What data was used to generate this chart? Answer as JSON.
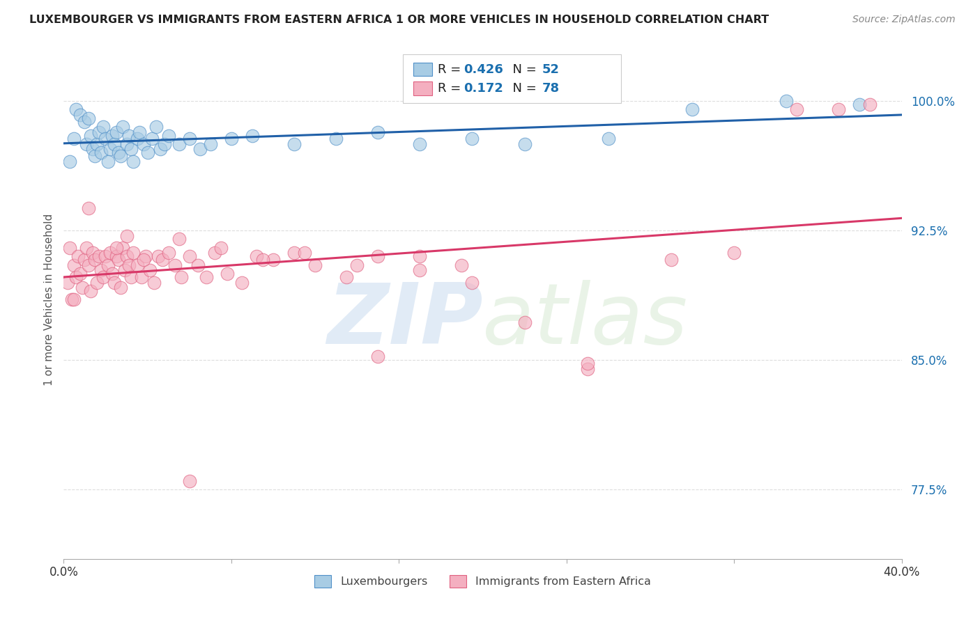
{
  "title": "LUXEMBOURGER VS IMMIGRANTS FROM EASTERN AFRICA 1 OR MORE VEHICLES IN HOUSEHOLD CORRELATION CHART",
  "source": "Source: ZipAtlas.com",
  "ylabel": "1 or more Vehicles in Household",
  "y_ticks": [
    77.5,
    85.0,
    92.5,
    100.0
  ],
  "y_tick_labels": [
    "77.5%",
    "85.0%",
    "92.5%",
    "100.0%"
  ],
  "xlim": [
    0.0,
    0.4
  ],
  "ylim": [
    73.5,
    103.5
  ],
  "blue_label": "Luxembourgers",
  "pink_label": "Immigrants from Eastern Africa",
  "blue_R": 0.426,
  "blue_N": 52,
  "pink_R": 0.172,
  "pink_N": 78,
  "blue_color": "#a8cce4",
  "pink_color": "#f4afc0",
  "blue_edge": "#5090c8",
  "pink_edge": "#e06080",
  "blue_line": "#2060a8",
  "pink_line": "#d83868",
  "legend_num_color": "#1a6faf",
  "grid_color": "#dddddd",
  "background": "#ffffff",
  "blue_x": [
    0.003,
    0.005,
    0.006,
    0.008,
    0.01,
    0.011,
    0.012,
    0.013,
    0.014,
    0.015,
    0.016,
    0.017,
    0.018,
    0.019,
    0.02,
    0.021,
    0.022,
    0.023,
    0.024,
    0.025,
    0.026,
    0.027,
    0.028,
    0.03,
    0.031,
    0.032,
    0.033,
    0.035,
    0.036,
    0.038,
    0.04,
    0.042,
    0.044,
    0.046,
    0.048,
    0.05,
    0.055,
    0.06,
    0.065,
    0.07,
    0.08,
    0.09,
    0.11,
    0.13,
    0.15,
    0.17,
    0.195,
    0.22,
    0.26,
    0.3,
    0.345,
    0.38
  ],
  "blue_y": [
    96.5,
    97.8,
    99.5,
    99.2,
    98.8,
    97.5,
    99.0,
    98.0,
    97.2,
    96.8,
    97.5,
    98.2,
    97.0,
    98.5,
    97.8,
    96.5,
    97.2,
    98.0,
    97.5,
    98.2,
    97.0,
    96.8,
    98.5,
    97.5,
    98.0,
    97.2,
    96.5,
    97.8,
    98.2,
    97.5,
    97.0,
    97.8,
    98.5,
    97.2,
    97.5,
    98.0,
    97.5,
    97.8,
    97.2,
    97.5,
    97.8,
    98.0,
    97.5,
    97.8,
    98.2,
    97.5,
    97.8,
    97.5,
    97.8,
    99.5,
    100.0,
    99.8
  ],
  "pink_x": [
    0.002,
    0.003,
    0.004,
    0.005,
    0.006,
    0.007,
    0.008,
    0.009,
    0.01,
    0.011,
    0.012,
    0.013,
    0.014,
    0.015,
    0.016,
    0.017,
    0.018,
    0.019,
    0.02,
    0.021,
    0.022,
    0.023,
    0.024,
    0.025,
    0.026,
    0.027,
    0.028,
    0.029,
    0.03,
    0.031,
    0.032,
    0.033,
    0.035,
    0.037,
    0.039,
    0.041,
    0.043,
    0.045,
    0.047,
    0.05,
    0.053,
    0.056,
    0.06,
    0.064,
    0.068,
    0.072,
    0.078,
    0.085,
    0.092,
    0.1,
    0.11,
    0.12,
    0.135,
    0.15,
    0.17,
    0.195,
    0.22,
    0.25,
    0.15,
    0.17,
    0.19,
    0.012,
    0.025,
    0.038,
    0.055,
    0.075,
    0.095,
    0.115,
    0.14,
    0.25,
    0.29,
    0.32,
    0.35,
    0.37,
    0.385,
    0.005,
    0.03,
    0.06
  ],
  "pink_y": [
    89.5,
    91.5,
    88.5,
    90.5,
    89.8,
    91.0,
    90.0,
    89.2,
    90.8,
    91.5,
    90.5,
    89.0,
    91.2,
    90.8,
    89.5,
    91.0,
    90.2,
    89.8,
    91.0,
    90.5,
    91.2,
    90.0,
    89.5,
    91.0,
    90.8,
    89.2,
    91.5,
    90.2,
    91.0,
    90.5,
    89.8,
    91.2,
    90.5,
    89.8,
    91.0,
    90.2,
    89.5,
    91.0,
    90.8,
    91.2,
    90.5,
    89.8,
    91.0,
    90.5,
    89.8,
    91.2,
    90.0,
    89.5,
    91.0,
    90.8,
    91.2,
    90.5,
    89.8,
    91.0,
    90.2,
    89.5,
    87.2,
    84.5,
    85.2,
    91.0,
    90.5,
    93.8,
    91.5,
    90.8,
    92.0,
    91.5,
    90.8,
    91.2,
    90.5,
    84.8,
    90.8,
    91.2,
    99.5,
    99.5,
    99.8,
    88.5,
    92.2,
    78.0
  ]
}
